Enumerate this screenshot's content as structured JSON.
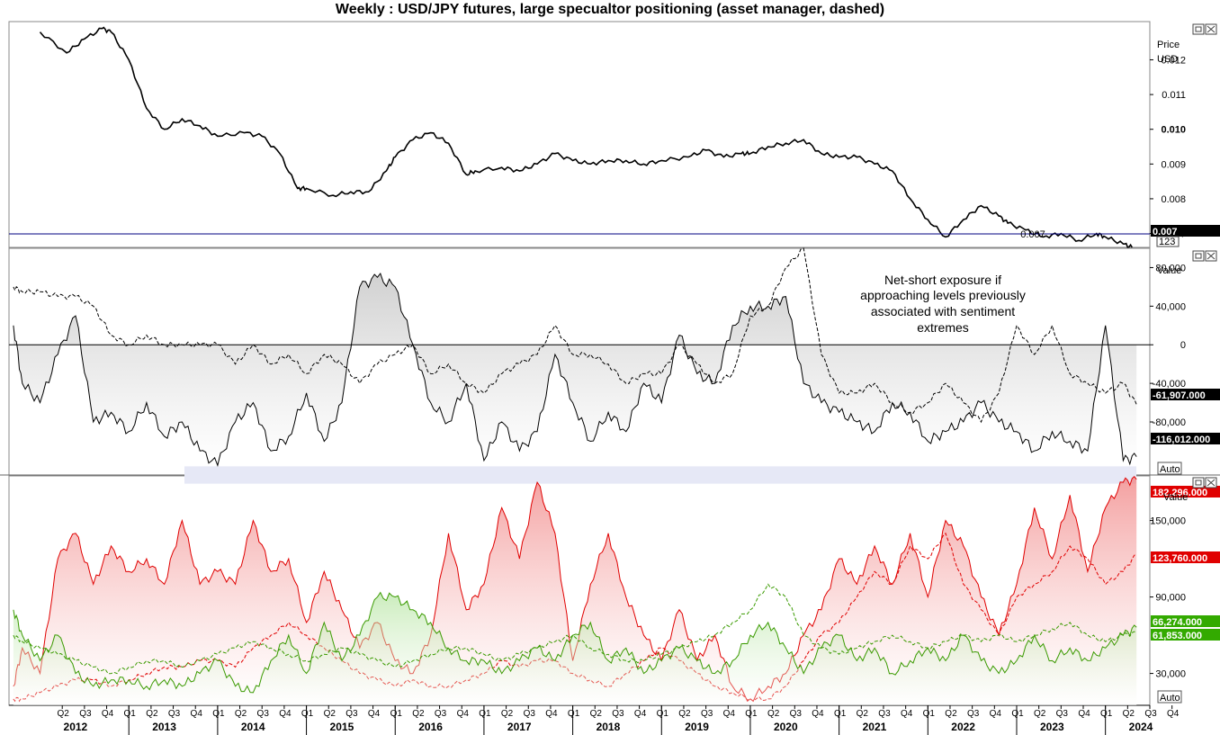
{
  "title": "Weekly : USD/JPY futures, large specualtor positioning (asset manager, dashed)",
  "colors": {
    "price_line": "#000000",
    "net_line": "#000000",
    "long_green": "#3a9a00",
    "short_red": "#e00000",
    "last_price_line": "#000080",
    "highlight_band": "#e6e8f6",
    "badge_black": "#000000",
    "badge_red": "#e00000",
    "badge_green": "#33aa00"
  },
  "panels": {
    "price": {
      "axis_title": "Price",
      "axis_unit": "USD",
      "ticks": [
        {
          "label": "0.012",
          "value": 0.012
        },
        {
          "label": "0.011",
          "value": 0.011
        },
        {
          "label": "0.010",
          "value": 0.01
        },
        {
          "label": "0.009",
          "value": 0.009
        },
        {
          "label": "0.008",
          "value": 0.008
        },
        {
          "label": "0.007",
          "value": 0.007
        }
      ],
      "last_value_badge": "0.007",
      "last_line_label": "0.007",
      "sub_badge": "123"
    },
    "net": {
      "axis_title": "Value",
      "ticks": [
        {
          "label": "80,000",
          "value": 80000
        },
        {
          "label": "40,000",
          "value": 40000
        },
        {
          "label": "0",
          "value": 0
        },
        {
          "label": "-40,000",
          "value": -40000
        },
        {
          "label": "-80,000",
          "value": -80000
        }
      ],
      "badges": [
        "-61,907.000",
        "-116,012.000"
      ],
      "auto_label": "Auto",
      "annotation": [
        "Net-short exposure if",
        "approaching levels previously",
        "associated with sentiment",
        "extremes"
      ]
    },
    "gross": {
      "axis_title": "Value",
      "ticks": [
        {
          "label": "150,000",
          "value": 150000
        },
        {
          "label": "90,000",
          "value": 90000
        },
        {
          "label": "30,000",
          "value": 30000
        }
      ],
      "badges": [
        {
          "label": "182,296.000",
          "color": "red"
        },
        {
          "label": "123,760.000",
          "color": "red"
        },
        {
          "label": "66,274.000",
          "color": "green"
        },
        {
          "label": "61,853.000",
          "color": "green"
        }
      ],
      "auto_label": "Auto"
    }
  },
  "x_axis": {
    "quarters": [
      "Q2",
      "Q3",
      "Q4",
      "Q1",
      "Q2",
      "Q3",
      "Q4",
      "Q1",
      "Q2",
      "Q3",
      "Q4",
      "Q1",
      "Q2",
      "Q3",
      "Q4",
      "Q1",
      "Q2",
      "Q3",
      "Q4",
      "Q1",
      "Q2",
      "Q3",
      "Q4",
      "Q1",
      "Q2",
      "Q3",
      "Q4",
      "Q1",
      "Q2",
      "Q3",
      "Q4",
      "Q1",
      "Q2",
      "Q3",
      "Q4",
      "Q1",
      "Q2",
      "Q3",
      "Q4",
      "Q1",
      "Q2",
      "Q3",
      "Q4",
      "Q1",
      "Q2",
      "Q3",
      "Q4",
      "Q1",
      "Q2",
      "Q3",
      "Q4"
    ],
    "years": [
      "2012",
      "2013",
      "2014",
      "2015",
      "2016",
      "2017",
      "2018",
      "2019",
      "2020",
      "2021",
      "2022",
      "2023",
      "2024"
    ]
  },
  "chart_data": [
    {
      "type": "line",
      "title": "Weekly : USD/JPY futures, large specualtor positioning (asset manager, dashed)",
      "ylabel": "Price USD",
      "ylim": [
        0.0066,
        0.0131
      ],
      "x": [
        2012.0,
        2012.3,
        2012.5,
        2012.7,
        2012.8,
        2013.0,
        2013.2,
        2013.4,
        2013.6,
        2013.8,
        2014.0,
        2014.3,
        2014.5,
        2014.7,
        2014.9,
        2015.0,
        2015.3,
        2015.5,
        2015.7,
        2015.9,
        2016.0,
        2016.2,
        2016.4,
        2016.6,
        2016.8,
        2016.9,
        2017.2,
        2017.4,
        2017.6,
        2017.8,
        2018.0,
        2018.2,
        2018.4,
        2018.6,
        2018.8,
        2019.0,
        2019.3,
        2019.5,
        2019.7,
        2019.9,
        2020.0,
        2020.2,
        2020.4,
        2020.6,
        2020.8,
        2021.0,
        2021.2,
        2021.4,
        2021.6,
        2021.8,
        2022.0,
        2022.2,
        2022.4,
        2022.6,
        2022.8,
        2022.9,
        2023.1,
        2023.3,
        2023.5,
        2023.7,
        2023.9,
        2024.0,
        2024.2,
        2024.3
      ],
      "y": [
        0.0128,
        0.0122,
        0.0126,
        0.0129,
        0.0128,
        0.012,
        0.0106,
        0.01,
        0.0103,
        0.0101,
        0.0098,
        0.0099,
        0.0098,
        0.0093,
        0.0083,
        0.0083,
        0.0081,
        0.0082,
        0.0082,
        0.0088,
        0.0092,
        0.0097,
        0.0099,
        0.0096,
        0.0087,
        0.0088,
        0.0089,
        0.0088,
        0.009,
        0.0093,
        0.0091,
        0.009,
        0.0091,
        0.0091,
        0.009,
        0.0091,
        0.0092,
        0.0094,
        0.0092,
        0.0093,
        0.0093,
        0.0095,
        0.0096,
        0.0097,
        0.0093,
        0.0092,
        0.0092,
        0.009,
        0.0088,
        0.008,
        0.0074,
        0.0069,
        0.0074,
        0.0078,
        0.0075,
        0.0073,
        0.0071,
        0.0069,
        0.007,
        0.0068,
        0.007,
        0.0069,
        0.0067,
        0.0066
      ]
    },
    {
      "type": "line",
      "ylabel": "Value",
      "ylim": [
        -135000,
        100000
      ],
      "x": [
        2011.7,
        2011.8,
        2012.0,
        2012.2,
        2012.4,
        2012.6,
        2012.8,
        2013.0,
        2013.2,
        2013.4,
        2013.6,
        2013.8,
        2014.0,
        2014.2,
        2014.4,
        2014.6,
        2014.8,
        2015.0,
        2015.2,
        2015.4,
        2015.6,
        2015.8,
        2016.0,
        2016.2,
        2016.4,
        2016.6,
        2016.8,
        2017.0,
        2017.2,
        2017.4,
        2017.6,
        2017.8,
        2018.0,
        2018.2,
        2018.4,
        2018.6,
        2018.8,
        2019.0,
        2019.2,
        2019.4,
        2019.6,
        2019.8,
        2020.0,
        2020.2,
        2020.4,
        2020.6,
        2020.8,
        2021.0,
        2021.2,
        2021.4,
        2021.6,
        2021.8,
        2022.0,
        2022.2,
        2022.4,
        2022.6,
        2022.8,
        2023.0,
        2023.2,
        2023.4,
        2023.6,
        2023.8,
        2024.0,
        2024.2,
        2024.35
      ],
      "series": [
        {
          "name": "",
          "style": "solid",
          "values": [
            20000,
            -40000,
            -60000,
            -10000,
            30000,
            -80000,
            -70000,
            -90000,
            -60000,
            -95000,
            -80000,
            -110000,
            -125000,
            -80000,
            -60000,
            -110000,
            -95000,
            -50000,
            -100000,
            -60000,
            60000,
            70000,
            60000,
            0,
            -60000,
            -80000,
            -40000,
            -120000,
            -80000,
            -110000,
            -90000,
            -10000,
            -60000,
            -100000,
            -70000,
            -90000,
            -40000,
            -60000,
            10000,
            -30000,
            -40000,
            20000,
            40000,
            40000,
            50000,
            -40000,
            -60000,
            -70000,
            -80000,
            -90000,
            -60000,
            -70000,
            -100000,
            -90000,
            -80000,
            -60000,
            -80000,
            -90000,
            -110000,
            -90000,
            -100000,
            -110000,
            20000,
            -120000,
            -116012
          ]
        },
        {
          "name": "",
          "style": "dashed",
          "values": [
            60000,
            55000,
            55000,
            50000,
            50000,
            40000,
            10000,
            0,
            10000,
            0,
            0,
            0,
            0,
            -20000,
            0,
            -20000,
            -10000,
            -30000,
            -10000,
            -20000,
            -40000,
            -20000,
            -10000,
            0,
            -30000,
            -20000,
            -40000,
            -50000,
            -30000,
            -20000,
            -10000,
            20000,
            -10000,
            -10000,
            -20000,
            -40000,
            -30000,
            -30000,
            0,
            -20000,
            -40000,
            -30000,
            30000,
            40000,
            80000,
            100000,
            -10000,
            -50000,
            -50000,
            -40000,
            -60000,
            -70000,
            -60000,
            -40000,
            -60000,
            -80000,
            -50000,
            20000,
            -10000,
            20000,
            -30000,
            -40000,
            -50000,
            -40000,
            -61907
          ]
        }
      ],
      "reference_lines": [
        0
      ],
      "highlight_band": [
        -126000,
        -144000
      ]
    },
    {
      "type": "area",
      "ylabel": "Value",
      "ylim": [
        5000,
        185000
      ],
      "x": [
        2011.7,
        2011.8,
        2012.0,
        2012.2,
        2012.4,
        2012.6,
        2012.8,
        2013.0,
        2013.2,
        2013.4,
        2013.6,
        2013.8,
        2014.0,
        2014.2,
        2014.4,
        2014.6,
        2014.8,
        2015.0,
        2015.2,
        2015.4,
        2015.6,
        2015.8,
        2016.0,
        2016.2,
        2016.4,
        2016.6,
        2016.8,
        2017.0,
        2017.2,
        2017.4,
        2017.6,
        2017.8,
        2018.0,
        2018.2,
        2018.4,
        2018.6,
        2018.8,
        2019.0,
        2019.2,
        2019.4,
        2019.6,
        2019.8,
        2020.0,
        2020.2,
        2020.4,
        2020.6,
        2020.8,
        2021.0,
        2021.2,
        2021.4,
        2021.6,
        2021.8,
        2022.0,
        2022.2,
        2022.4,
        2022.6,
        2022.8,
        2023.0,
        2023.2,
        2023.4,
        2023.6,
        2023.8,
        2024.0,
        2024.2,
        2024.35
      ],
      "series": [
        {
          "name": "",
          "style": "solid",
          "color": "red",
          "values": [
            20000,
            50000,
            30000,
            120000,
            140000,
            100000,
            130000,
            110000,
            120000,
            100000,
            150000,
            100000,
            110000,
            100000,
            150000,
            110000,
            120000,
            70000,
            110000,
            80000,
            50000,
            70000,
            40000,
            30000,
            60000,
            140000,
            80000,
            100000,
            160000,
            120000,
            180000,
            140000,
            40000,
            100000,
            140000,
            90000,
            60000,
            40000,
            80000,
            40000,
            60000,
            20000,
            10000,
            20000,
            30000,
            60000,
            80000,
            120000,
            100000,
            130000,
            100000,
            140000,
            90000,
            150000,
            130000,
            90000,
            60000,
            100000,
            160000,
            120000,
            170000,
            110000,
            160000,
            180000,
            182296
          ]
        },
        {
          "name": "",
          "style": "dashed",
          "color": "red",
          "values": [
            10000,
            10000,
            15000,
            20000,
            25000,
            25000,
            20000,
            25000,
            30000,
            35000,
            35000,
            40000,
            40000,
            35000,
            50000,
            60000,
            70000,
            60000,
            50000,
            40000,
            30000,
            25000,
            20000,
            25000,
            20000,
            20000,
            25000,
            30000,
            40000,
            35000,
            40000,
            40000,
            30000,
            25000,
            20000,
            30000,
            40000,
            50000,
            40000,
            30000,
            20000,
            15000,
            10000,
            10000,
            20000,
            40000,
            60000,
            70000,
            90000,
            110000,
            100000,
            130000,
            120000,
            140000,
            100000,
            80000,
            60000,
            90000,
            100000,
            110000,
            130000,
            120000,
            100000,
            110000,
            123760
          ]
        },
        {
          "name": "",
          "style": "solid",
          "color": "green",
          "values": [
            80000,
            60000,
            40000,
            60000,
            30000,
            20000,
            25000,
            25000,
            20000,
            25000,
            20000,
            30000,
            40000,
            20000,
            15000,
            40000,
            60000,
            30000,
            70000,
            40000,
            60000,
            90000,
            90000,
            80000,
            70000,
            50000,
            40000,
            40000,
            30000,
            40000,
            50000,
            40000,
            60000,
            70000,
            40000,
            50000,
            30000,
            40000,
            50000,
            40000,
            30000,
            40000,
            60000,
            70000,
            50000,
            30000,
            50000,
            60000,
            40000,
            50000,
            30000,
            40000,
            50000,
            40000,
            60000,
            40000,
            30000,
            40000,
            60000,
            40000,
            50000,
            40000,
            50000,
            60000,
            66274
          ]
        },
        {
          "name": "",
          "style": "dashed",
          "color": "green",
          "values": [
            60000,
            55000,
            50000,
            45000,
            40000,
            35000,
            30000,
            35000,
            40000,
            40000,
            35000,
            40000,
            45000,
            50000,
            55000,
            50000,
            45000,
            40000,
            45000,
            50000,
            45000,
            40000,
            35000,
            40000,
            45000,
            50000,
            50000,
            45000,
            40000,
            45000,
            50000,
            55000,
            60000,
            50000,
            45000,
            40000,
            40000,
            45000,
            50000,
            55000,
            60000,
            70000,
            80000,
            100000,
            90000,
            60000,
            50000,
            45000,
            50000,
            55000,
            60000,
            55000,
            50000,
            55000,
            60000,
            55000,
            60000,
            55000,
            60000,
            65000,
            70000,
            60000,
            55000,
            60000,
            61853
          ]
        }
      ]
    }
  ]
}
